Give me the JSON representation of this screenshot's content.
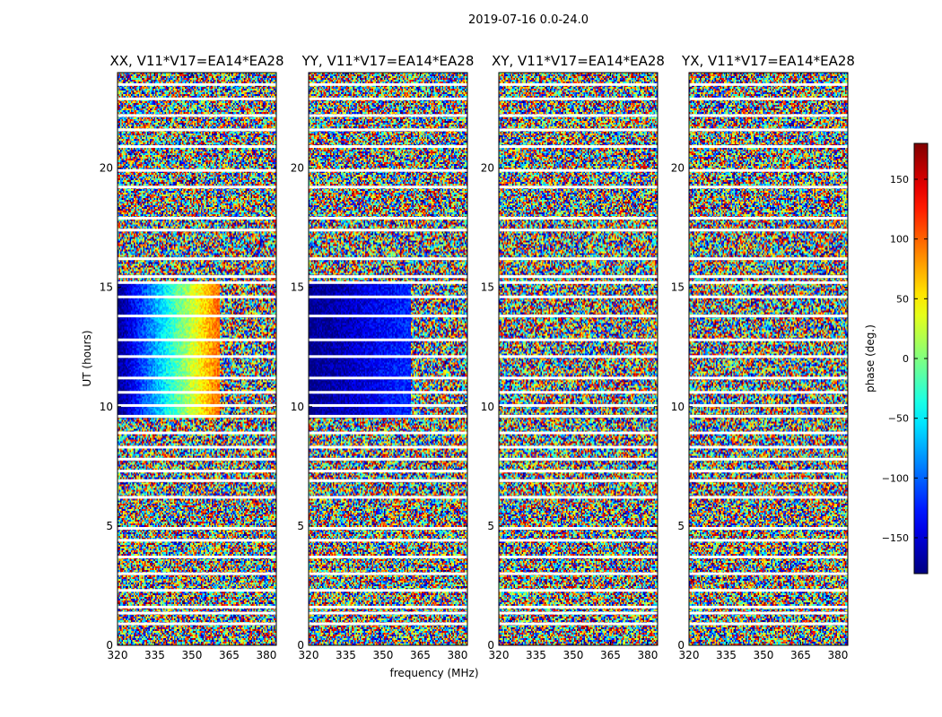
{
  "chart_data": {
    "type": "heatmap",
    "suptitle": "2019-07-16 0.0-24.0",
    "xlabel": "frequency (MHz)",
    "ylabel": "UT (hours)",
    "xlim": [
      320,
      384
    ],
    "ylim": [
      0,
      24
    ],
    "xticks": [
      320,
      335,
      350,
      365,
      380
    ],
    "yticks": [
      0,
      5,
      10,
      15,
      20
    ],
    "panels": [
      {
        "title": "XX, V11*V17=EA14*EA28",
        "coherent_phase_hours": [
          9.5,
          15.2
        ],
        "coherent_freq_end_mhz": 361,
        "coherent_phase_range_deg": [
          -180,
          100
        ]
      },
      {
        "title": "YY, V11*V17=EA14*EA28",
        "coherent_phase_hours": [
          9.5,
          15.2
        ],
        "coherent_freq_end_mhz": 361,
        "coherent_phase_range_deg": [
          -180,
          -120
        ]
      },
      {
        "title": "XY, V11*V17=EA14*EA28",
        "coherent_phase_hours": null
      },
      {
        "title": "YX, V11*V17=EA14*EA28",
        "coherent_phase_hours": null
      }
    ],
    "flagged_hours": [
      0.9,
      1.35,
      1.6,
      2.3,
      3.0,
      3.7,
      4.4,
      4.9,
      6.2,
      6.9,
      7.3,
      7.8,
      8.3,
      8.9,
      9.6,
      10.05,
      10.6,
      11.2,
      12.1,
      12.8,
      13.8,
      14.6,
      15.2,
      15.45,
      16.2,
      17.4,
      17.9,
      19.2,
      19.9,
      20.9,
      21.6,
      22.2,
      22.9,
      23.5
    ],
    "colorbar": {
      "label": "phase (deg.)",
      "ticks": [
        150,
        100,
        50,
        0,
        -50,
        -100,
        -150
      ],
      "min": -180,
      "max": 180,
      "colormap": "jet"
    }
  }
}
